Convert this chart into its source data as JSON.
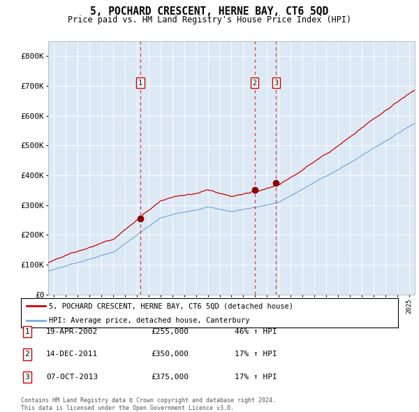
{
  "title": "5, POCHARD CRESCENT, HERNE BAY, CT6 5QD",
  "subtitle": "Price paid vs. HM Land Registry's House Price Index (HPI)",
  "background_color": "#dce9f5",
  "red_line_label": "5, POCHARD CRESCENT, HERNE BAY, CT6 5QD (detached house)",
  "blue_line_label": "HPI: Average price, detached house, Canterbury",
  "transactions": [
    {
      "num": 1,
      "date": "19-APR-2002",
      "price": 255000,
      "pct": "46%",
      "dir": "↑"
    },
    {
      "num": 2,
      "date": "14-DEC-2011",
      "price": 350000,
      "pct": "17%",
      "dir": "↑"
    },
    {
      "num": 3,
      "date": "07-OCT-2013",
      "price": 375000,
      "pct": "17%",
      "dir": "↑"
    }
  ],
  "transaction_years": [
    2002.3,
    2011.96,
    2013.77
  ],
  "transaction_prices": [
    255000,
    350000,
    375000
  ],
  "ylim": [
    0,
    850000
  ],
  "yticks": [
    0,
    100000,
    200000,
    300000,
    400000,
    500000,
    600000,
    700000,
    800000
  ],
  "ytick_labels": [
    "£0",
    "£100K",
    "£200K",
    "£300K",
    "£400K",
    "£500K",
    "£600K",
    "£700K",
    "£800K"
  ],
  "xlim_start": 1994.5,
  "xlim_end": 2025.5,
  "footer": "Contains HM Land Registry data © Crown copyright and database right 2024.\nThis data is licensed under the Open Government Licence v3.0."
}
